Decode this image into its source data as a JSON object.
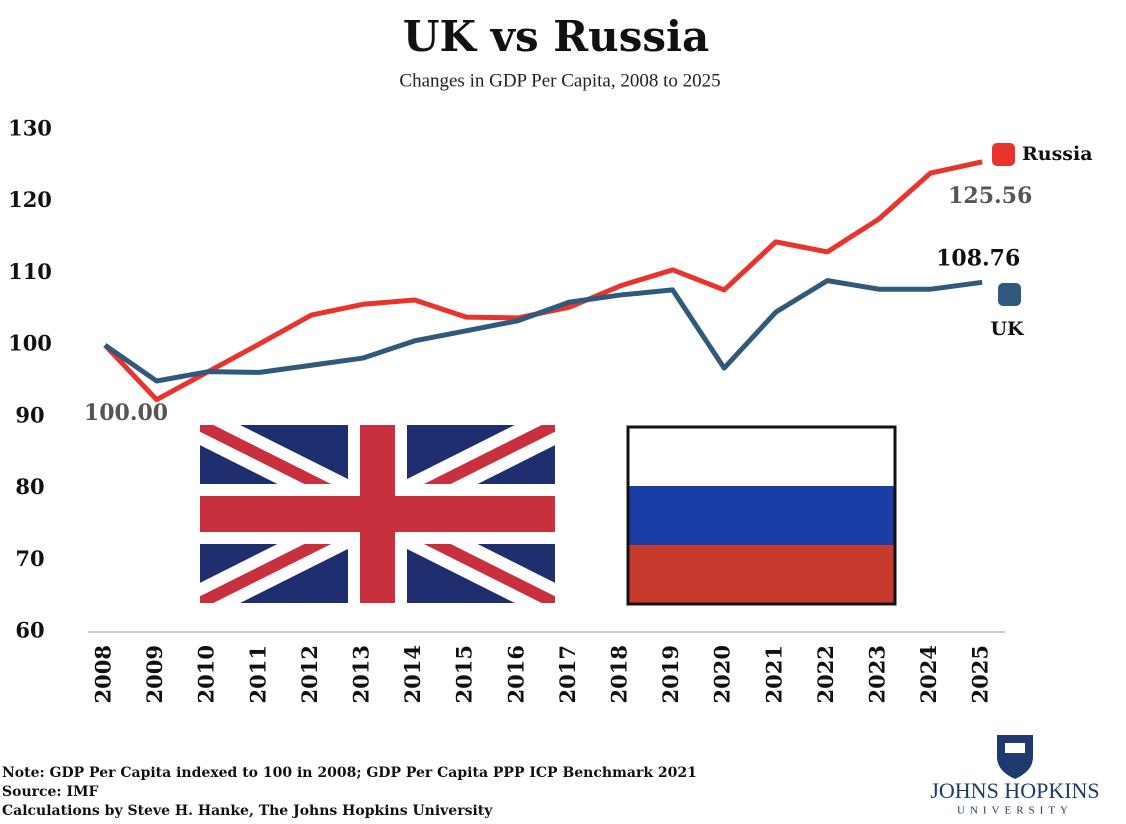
{
  "chart_data": {
    "type": "line",
    "title": "UK vs Russia",
    "subtitle": "Changes in GDP Per Capita, 2008 to 2025",
    "categories": [
      "2008",
      "2009",
      "2010",
      "2011",
      "2012",
      "2013",
      "2014",
      "2015",
      "2016",
      "2017",
      "2018",
      "2019",
      "2020",
      "2021",
      "2022",
      "2023",
      "2024",
      "2025"
    ],
    "series": [
      {
        "name": "Russia",
        "color": "#e8342c",
        "values": [
          100,
          92.4,
          96.3,
          100.2,
          104.2,
          105.7,
          106.3,
          103.9,
          103.8,
          105.3,
          108.3,
          110.5,
          107.7,
          114.4,
          113,
          117.6,
          124,
          125.56
        ],
        "value_labels": [
          "100.00",
          null,
          null,
          null,
          null,
          null,
          null,
          null,
          null,
          null,
          null,
          null,
          null,
          null,
          null,
          null,
          null,
          "125.56"
        ]
      },
      {
        "name": "UK",
        "color": "#2f5a7e",
        "values": [
          100,
          95,
          96.3,
          96.2,
          97.2,
          98.2,
          100.6,
          102,
          103.4,
          106,
          107,
          107.7,
          96.8,
          104.6,
          109,
          107.8,
          107.8,
          108.76
        ],
        "value_labels": [
          null,
          null,
          null,
          null,
          null,
          null,
          null,
          null,
          null,
          null,
          null,
          null,
          null,
          null,
          null,
          null,
          null,
          "108.76"
        ]
      }
    ],
    "ylim": [
      60,
      130
    ],
    "yticks": [
      60,
      70,
      80,
      90,
      100,
      110,
      120,
      130
    ],
    "grid": false,
    "notes": [
      "Note: GDP Per Capita indexed to 100 in 2008; GDP Per Capita PPP ICP Benchmark 2021",
      "Source: IMF",
      "Calculations by Steve H. Hanke, The Johns Hopkins University"
    ],
    "logo": {
      "name": "JOHNS HOPKINS",
      "sub": "UNIVERSITY"
    }
  }
}
